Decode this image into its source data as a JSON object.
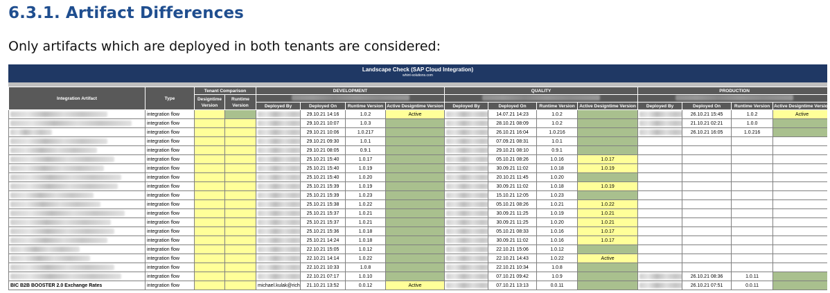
{
  "heading": "6.3.1. Artifact Differences",
  "intro": "Only artifacts which are deployed in both tenants are considered:",
  "report": {
    "title": "Landscape Check (SAP Cloud Integration)",
    "subtitle": "whint-solutions.com",
    "headers": {
      "integration_artifact": "Integration Artifact",
      "type": "Type",
      "tenant_comparison": "Tenant Comparison",
      "designtime_version": "Designtime Version",
      "runtime_version": "Runtime Version",
      "deployed_by": "Deployed By",
      "deployed_on": "Deployed On",
      "active_designtime_version": "Active Designtime Version"
    },
    "environments": [
      "DEVELOPMENT",
      "QUALITY",
      "PRODUCTION"
    ],
    "colors": {
      "banner": "#1f3864",
      "header": "#595959",
      "yellow": "#ffff99",
      "green": "#a9c08e"
    },
    "rows": [
      {
        "name": "",
        "type": "integration flow",
        "cmp_dt": "y",
        "cmp_rt": "g",
        "dev_by": "",
        "dev_on": "29.10.21 14:16",
        "dev_rt": "1.0.2",
        "dev_act": "Active",
        "dev_act_c": "y",
        "qa_by": "",
        "qa_on": "14.07.21 14:23",
        "qa_rt": "1.0.2",
        "qa_act": "",
        "qa_act_c": "g",
        "prd_by": "",
        "prd_on": "26.10.21 15:45",
        "prd_rt": "1.0.2",
        "prd_act": "Active",
        "prd_act_c": "y"
      },
      {
        "name": "",
        "type": "integration flow",
        "cmp_dt": "y",
        "cmp_rt": "y",
        "dev_by": "",
        "dev_on": "29.10.21 10:07",
        "dev_rt": "1.0.3",
        "dev_act": "",
        "dev_act_c": "g",
        "qa_by": "",
        "qa_on": "28.10.21 08:09",
        "qa_rt": "1.0.2",
        "qa_act": "",
        "qa_act_c": "g",
        "prd_by": "",
        "prd_on": "21.10.21 02:21",
        "prd_rt": "1.0.0",
        "prd_act": "",
        "prd_act_c": "g"
      },
      {
        "name": "",
        "type": "integration flow",
        "cmp_dt": "y",
        "cmp_rt": "y",
        "dev_by": "",
        "dev_on": "29.10.21 10:06",
        "dev_rt": "1.0.217",
        "dev_act": "",
        "dev_act_c": "g",
        "qa_by": "",
        "qa_on": "26.10.21 16:04",
        "qa_rt": "1.0.216",
        "qa_act": "",
        "qa_act_c": "g",
        "prd_by": "",
        "prd_on": "26.10.21 16:05",
        "prd_rt": "1.0.216",
        "prd_act": "",
        "prd_act_c": "g"
      },
      {
        "name": "",
        "type": "integration flow",
        "cmp_dt": "y",
        "cmp_rt": "y",
        "dev_by": "",
        "dev_on": "29.10.21 09:30",
        "dev_rt": "1.0.1",
        "dev_act": "",
        "dev_act_c": "g",
        "qa_by": "",
        "qa_on": "07.09.21 08:31",
        "qa_rt": "1.0.1",
        "qa_act": "",
        "qa_act_c": "g",
        "prd_by": "",
        "prd_on": "",
        "prd_rt": "",
        "prd_act": "",
        "prd_act_c": ""
      },
      {
        "name": "",
        "type": "integration flow",
        "cmp_dt": "y",
        "cmp_rt": "y",
        "dev_by": "",
        "dev_on": "29.10.21 08:05",
        "dev_rt": "0.9.1",
        "dev_act": "",
        "dev_act_c": "g",
        "qa_by": "",
        "qa_on": "29.10.21 08:10",
        "qa_rt": "0.9.1",
        "qa_act": "",
        "qa_act_c": "g",
        "prd_by": "",
        "prd_on": "",
        "prd_rt": "",
        "prd_act": "",
        "prd_act_c": ""
      },
      {
        "name": "",
        "type": "integration flow",
        "cmp_dt": "y",
        "cmp_rt": "y",
        "dev_by": "",
        "dev_on": "25.10.21 15:40",
        "dev_rt": "1.0.17",
        "dev_act": "",
        "dev_act_c": "g",
        "qa_by": "",
        "qa_on": "05.10.21 08:26",
        "qa_rt": "1.0.16",
        "qa_act": "1.0.17",
        "qa_act_c": "y",
        "prd_by": "",
        "prd_on": "",
        "prd_rt": "",
        "prd_act": "",
        "prd_act_c": ""
      },
      {
        "name": "",
        "type": "integration flow",
        "cmp_dt": "y",
        "cmp_rt": "y",
        "dev_by": "",
        "dev_on": "25.10.21 15:40",
        "dev_rt": "1.0.19",
        "dev_act": "",
        "dev_act_c": "g",
        "qa_by": "",
        "qa_on": "30.09.21 11:02",
        "qa_rt": "1.0.18",
        "qa_act": "1.0.19",
        "qa_act_c": "y",
        "prd_by": "",
        "prd_on": "",
        "prd_rt": "",
        "prd_act": "",
        "prd_act_c": ""
      },
      {
        "name": "",
        "type": "integration flow",
        "cmp_dt": "y",
        "cmp_rt": "y",
        "dev_by": "",
        "dev_on": "25.10.21 15:40",
        "dev_rt": "1.0.20",
        "dev_act": "",
        "dev_act_c": "g",
        "qa_by": "",
        "qa_on": "20.10.21 11:45",
        "qa_rt": "1.0.20",
        "qa_act": "",
        "qa_act_c": "g",
        "prd_by": "",
        "prd_on": "",
        "prd_rt": "",
        "prd_act": "",
        "prd_act_c": ""
      },
      {
        "name": "",
        "type": "integration flow",
        "cmp_dt": "y",
        "cmp_rt": "y",
        "dev_by": "",
        "dev_on": "25.10.21 15:39",
        "dev_rt": "1.0.19",
        "dev_act": "",
        "dev_act_c": "g",
        "qa_by": "",
        "qa_on": "30.09.21 11:02",
        "qa_rt": "1.0.18",
        "qa_act": "1.0.19",
        "qa_act_c": "y",
        "prd_by": "",
        "prd_on": "",
        "prd_rt": "",
        "prd_act": "",
        "prd_act_c": ""
      },
      {
        "name": "",
        "type": "integration flow",
        "cmp_dt": "y",
        "cmp_rt": "y",
        "dev_by": "",
        "dev_on": "25.10.21 15:39",
        "dev_rt": "1.0.23",
        "dev_act": "",
        "dev_act_c": "g",
        "qa_by": "",
        "qa_on": "15.10.21 12:05",
        "qa_rt": "1.0.23",
        "qa_act": "",
        "qa_act_c": "g",
        "prd_by": "",
        "prd_on": "",
        "prd_rt": "",
        "prd_act": "",
        "prd_act_c": ""
      },
      {
        "name": "",
        "type": "integration flow",
        "cmp_dt": "y",
        "cmp_rt": "y",
        "dev_by": "",
        "dev_on": "25.10.21 15:38",
        "dev_rt": "1.0.22",
        "dev_act": "",
        "dev_act_c": "g",
        "qa_by": "",
        "qa_on": "05.10.21 08:26",
        "qa_rt": "1.0.21",
        "qa_act": "1.0.22",
        "qa_act_c": "y",
        "prd_by": "",
        "prd_on": "",
        "prd_rt": "",
        "prd_act": "",
        "prd_act_c": ""
      },
      {
        "name": "",
        "type": "integration flow",
        "cmp_dt": "y",
        "cmp_rt": "y",
        "dev_by": "",
        "dev_on": "25.10.21 15:37",
        "dev_rt": "1.0.21",
        "dev_act": "",
        "dev_act_c": "g",
        "qa_by": "",
        "qa_on": "30.09.21 11:25",
        "qa_rt": "1.0.19",
        "qa_act": "1.0.21",
        "qa_act_c": "y",
        "prd_by": "",
        "prd_on": "",
        "prd_rt": "",
        "prd_act": "",
        "prd_act_c": ""
      },
      {
        "name": "",
        "type": "integration flow",
        "cmp_dt": "y",
        "cmp_rt": "y",
        "dev_by": "",
        "dev_on": "25.10.21 15:37",
        "dev_rt": "1.0.21",
        "dev_act": "",
        "dev_act_c": "g",
        "qa_by": "",
        "qa_on": "30.09.21 11:25",
        "qa_rt": "1.0.20",
        "qa_act": "1.0.21",
        "qa_act_c": "y",
        "prd_by": "",
        "prd_on": "",
        "prd_rt": "",
        "prd_act": "",
        "prd_act_c": ""
      },
      {
        "name": "",
        "type": "integration flow",
        "cmp_dt": "y",
        "cmp_rt": "y",
        "dev_by": "",
        "dev_on": "25.10.21 15:36",
        "dev_rt": "1.0.18",
        "dev_act": "",
        "dev_act_c": "g",
        "qa_by": "",
        "qa_on": "05.10.21 08:33",
        "qa_rt": "1.0.16",
        "qa_act": "1.0.17",
        "qa_act_c": "y",
        "prd_by": "",
        "prd_on": "",
        "prd_rt": "",
        "prd_act": "",
        "prd_act_c": ""
      },
      {
        "name": "",
        "type": "integration flow",
        "cmp_dt": "y",
        "cmp_rt": "y",
        "dev_by": "",
        "dev_on": "25.10.21 14:24",
        "dev_rt": "1.0.18",
        "dev_act": "",
        "dev_act_c": "g",
        "qa_by": "",
        "qa_on": "30.09.21 11:02",
        "qa_rt": "1.0.16",
        "qa_act": "1.0.17",
        "qa_act_c": "y",
        "prd_by": "",
        "prd_on": "",
        "prd_rt": "",
        "prd_act": "",
        "prd_act_c": ""
      },
      {
        "name": "",
        "type": "integration flow",
        "cmp_dt": "y",
        "cmp_rt": "y",
        "dev_by": "",
        "dev_on": "22.10.21 15:05",
        "dev_rt": "1.0.12",
        "dev_act": "",
        "dev_act_c": "g",
        "qa_by": "",
        "qa_on": "22.10.21 15:06",
        "qa_rt": "1.0.12",
        "qa_act": "",
        "qa_act_c": "g",
        "prd_by": "",
        "prd_on": "",
        "prd_rt": "",
        "prd_act": "",
        "prd_act_c": ""
      },
      {
        "name": "",
        "type": "integration flow",
        "cmp_dt": "y",
        "cmp_rt": "y",
        "dev_by": "",
        "dev_on": "22.10.21 14:14",
        "dev_rt": "1.0.22",
        "dev_act": "",
        "dev_act_c": "g",
        "qa_by": "",
        "qa_on": "22.10.21 14:43",
        "qa_rt": "1.0.22",
        "qa_act": "Active",
        "qa_act_c": "y",
        "prd_by": "",
        "prd_on": "",
        "prd_rt": "",
        "prd_act": "",
        "prd_act_c": ""
      },
      {
        "name": "",
        "type": "integration flow",
        "cmp_dt": "y",
        "cmp_rt": "y",
        "dev_by": "",
        "dev_on": "22.10.21 10:33",
        "dev_rt": "1.0.8",
        "dev_act": "",
        "dev_act_c": "g",
        "qa_by": "",
        "qa_on": "22.10.21 10:34",
        "qa_rt": "1.0.8",
        "qa_act": "",
        "qa_act_c": "g",
        "prd_by": "",
        "prd_on": "",
        "prd_rt": "",
        "prd_act": "",
        "prd_act_c": ""
      },
      {
        "name": "",
        "type": "integration flow",
        "cmp_dt": "y",
        "cmp_rt": "y",
        "dev_by": "",
        "dev_on": "22.10.21 07:17",
        "dev_rt": "1.0.10",
        "dev_act": "",
        "dev_act_c": "g",
        "qa_by": "",
        "qa_on": "07.10.21 09:42",
        "qa_rt": "1.0.9",
        "qa_act": "",
        "qa_act_c": "g",
        "prd_by": "",
        "prd_on": "26.10.21 08:36",
        "prd_rt": "1.0.11",
        "prd_act": "",
        "prd_act_c": "g"
      },
      {
        "name": "BIC B2B BOOSTER 2.0 Exchange Rates",
        "type": "integration flow",
        "cmp_dt": "y",
        "cmp_rt": "y",
        "dev_by": "michael.kulak@riche",
        "dev_on": "21.10.21 13:52",
        "dev_rt": "0.0.12",
        "dev_act": "Active",
        "dev_act_c": "y",
        "qa_by": "",
        "qa_on": "07.10.21 13:13",
        "qa_rt": "0.0.11",
        "qa_act": "",
        "qa_act_c": "g",
        "prd_by": "",
        "prd_on": "26.10.21 07:51",
        "prd_rt": "0.0.11",
        "prd_act": "",
        "prd_act_c": "g"
      }
    ]
  }
}
